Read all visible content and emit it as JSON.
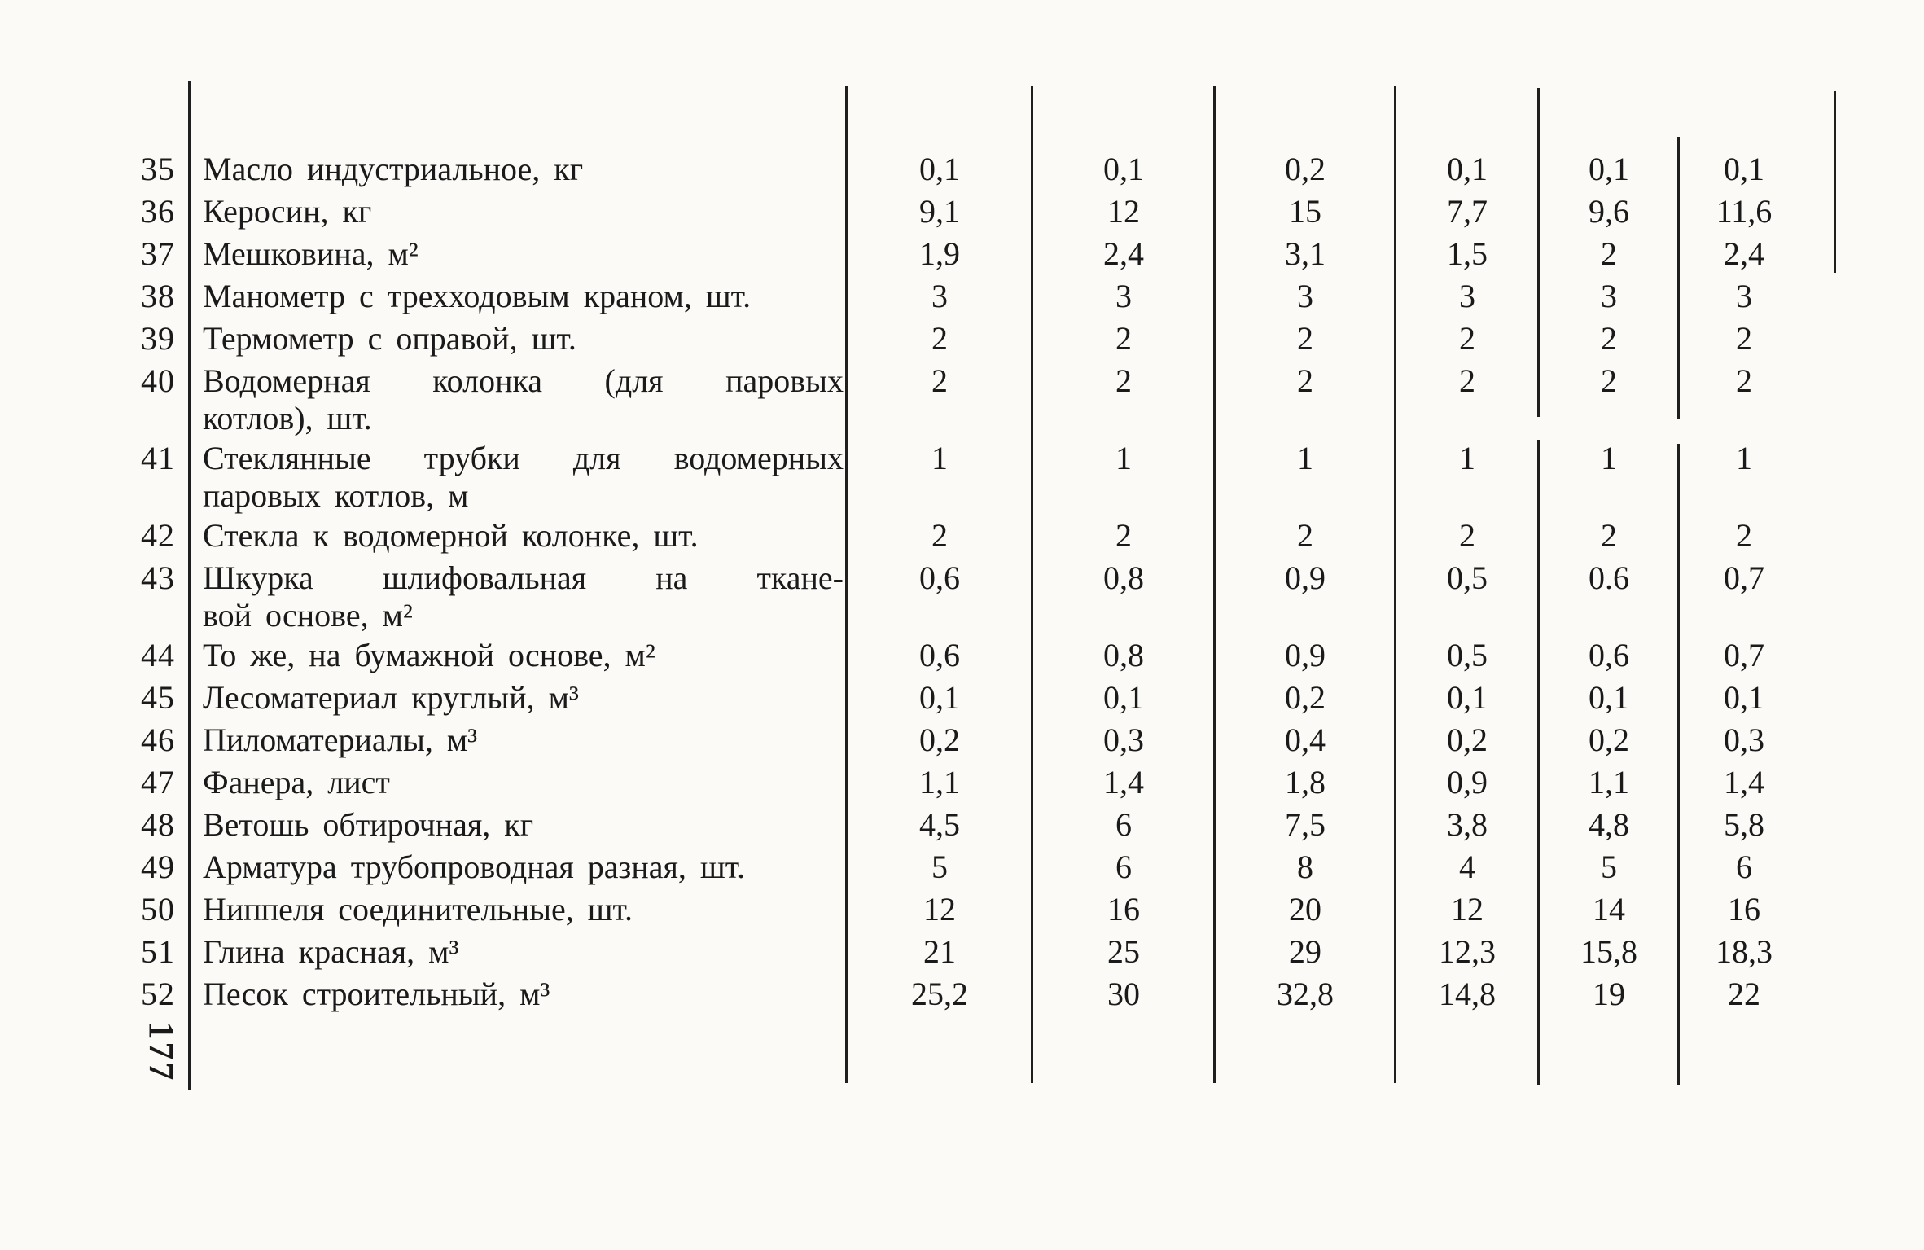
{
  "page": {
    "page_number": "177",
    "colors": {
      "ink": "#1a1a1a",
      "paper": "#fbfaf7",
      "rule": "#1f1f1f"
    }
  },
  "table": {
    "rows": [
      {
        "no": "35",
        "name": "Масло индустриальное, кг",
        "name2": "",
        "values": [
          "0,1",
          "0,1",
          "0,2",
          "0,1",
          "0,1",
          "0,1"
        ]
      },
      {
        "no": "36",
        "name": "Керосин, кг",
        "name2": "",
        "values": [
          "9,1",
          "12",
          "15",
          "7,7",
          "9,6",
          "11,6"
        ]
      },
      {
        "no": "37",
        "name": "Мешковина, м²",
        "name2": "",
        "values": [
          "1,9",
          "2,4",
          "3,1",
          "1,5",
          "2",
          "2,4"
        ]
      },
      {
        "no": "38",
        "name": "Манометр с трехходовым краном, шт.",
        "name2": "",
        "values": [
          "3",
          "3",
          "3",
          "3",
          "3",
          "3"
        ]
      },
      {
        "no": "39",
        "name": "Термометр с оправой, шт.",
        "name2": "",
        "values": [
          "2",
          "2",
          "2",
          "2",
          "2",
          "2"
        ]
      },
      {
        "no": "40",
        "name": "Водомерная колонка (для паровых",
        "name2": "котлов), шт.",
        "values": [
          "2",
          "2",
          "2",
          "2",
          "2",
          "2"
        ]
      },
      {
        "no": "41",
        "name": "Стеклянные трубки для водомерных",
        "name2": "паровых котлов, м",
        "values": [
          "1",
          "1",
          "1",
          "1",
          "1",
          "1"
        ]
      },
      {
        "no": "42",
        "name": "Стекла к водомерной колонке, шт.",
        "name2": "",
        "values": [
          "2",
          "2",
          "2",
          "2",
          "2",
          "2"
        ]
      },
      {
        "no": "43",
        "name": "Шкурка шлифовальная на ткане-",
        "name2": "вой основе, м²",
        "values": [
          "0,6",
          "0,8",
          "0,9",
          "0,5",
          "0.6",
          "0,7"
        ]
      },
      {
        "no": "44",
        "name": "То же, на бумажной основе, м²",
        "name2": "",
        "values": [
          "0,6",
          "0,8",
          "0,9",
          "0,5",
          "0,6",
          "0,7"
        ]
      },
      {
        "no": "45",
        "name": "Лесоматериал круглый, м³",
        "name2": "",
        "values": [
          "0,1",
          "0,1",
          "0,2",
          "0,1",
          "0,1",
          "0,1"
        ]
      },
      {
        "no": "46",
        "name": "Пиломатериалы, м³",
        "name2": "",
        "values": [
          "0,2",
          "0,3",
          "0,4",
          "0,2",
          "0,2",
          "0,3"
        ]
      },
      {
        "no": "47",
        "name": "Фанера, лист",
        "name2": "",
        "values": [
          "1,1",
          "1,4",
          "1,8",
          "0,9",
          "1,1",
          "1,4"
        ]
      },
      {
        "no": "48",
        "name": "Ветошь обтирочная, кг",
        "name2": "",
        "values": [
          "4,5",
          "6",
          "7,5",
          "3,8",
          "4,8",
          "5,8"
        ]
      },
      {
        "no": "49",
        "name": "Арматура трубопроводная разная, шт.",
        "name2": "",
        "values": [
          "5",
          "6",
          "8",
          "4",
          "5",
          "6"
        ]
      },
      {
        "no": "50",
        "name": "Ниппеля соединительные, шт.",
        "name2": "",
        "values": [
          "12",
          "16",
          "20",
          "12",
          "14",
          "16"
        ]
      },
      {
        "no": "51",
        "name": "Глина красная, м³",
        "name2": "",
        "values": [
          "21",
          "25",
          "29",
          "12,3",
          "15,8",
          "18,3"
        ]
      },
      {
        "no": "52",
        "name": "Песок строительный, м³",
        "name2": "",
        "values": [
          "25,2",
          "30",
          "32,8",
          "14,8",
          "19",
          "22"
        ]
      }
    ]
  }
}
